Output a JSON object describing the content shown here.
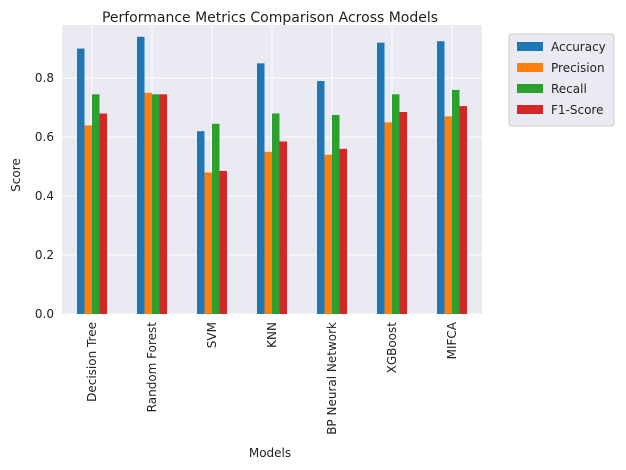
{
  "chart_data": {
    "type": "bar",
    "title": "Performance Metrics Comparison Across Models",
    "xlabel": "Models",
    "ylabel": "Score",
    "ylim": [
      0,
      0.98
    ],
    "yticks": [
      "0.0",
      "0.2",
      "0.4",
      "0.6",
      "0.8"
    ],
    "grid": true,
    "legend_position": "outside-top-right",
    "categories": [
      "Decision Tree",
      "Random Forest",
      "SVM",
      "KNN",
      "BP Neural Network",
      "XGBoost",
      "MIFCA"
    ],
    "series": [
      {
        "name": "Accuracy",
        "color": "#1f77b4",
        "values": [
          0.9,
          0.94,
          0.62,
          0.85,
          0.79,
          0.92,
          0.925
        ]
      },
      {
        "name": "Precision",
        "color": "#ff7f0e",
        "values": [
          0.64,
          0.75,
          0.48,
          0.55,
          0.54,
          0.65,
          0.67
        ]
      },
      {
        "name": "Recall",
        "color": "#2ca02c",
        "values": [
          0.745,
          0.745,
          0.645,
          0.68,
          0.675,
          0.745,
          0.76
        ]
      },
      {
        "name": "F1-Score",
        "color": "#d62728",
        "values": [
          0.68,
          0.745,
          0.485,
          0.585,
          0.56,
          0.685,
          0.705
        ]
      }
    ]
  }
}
